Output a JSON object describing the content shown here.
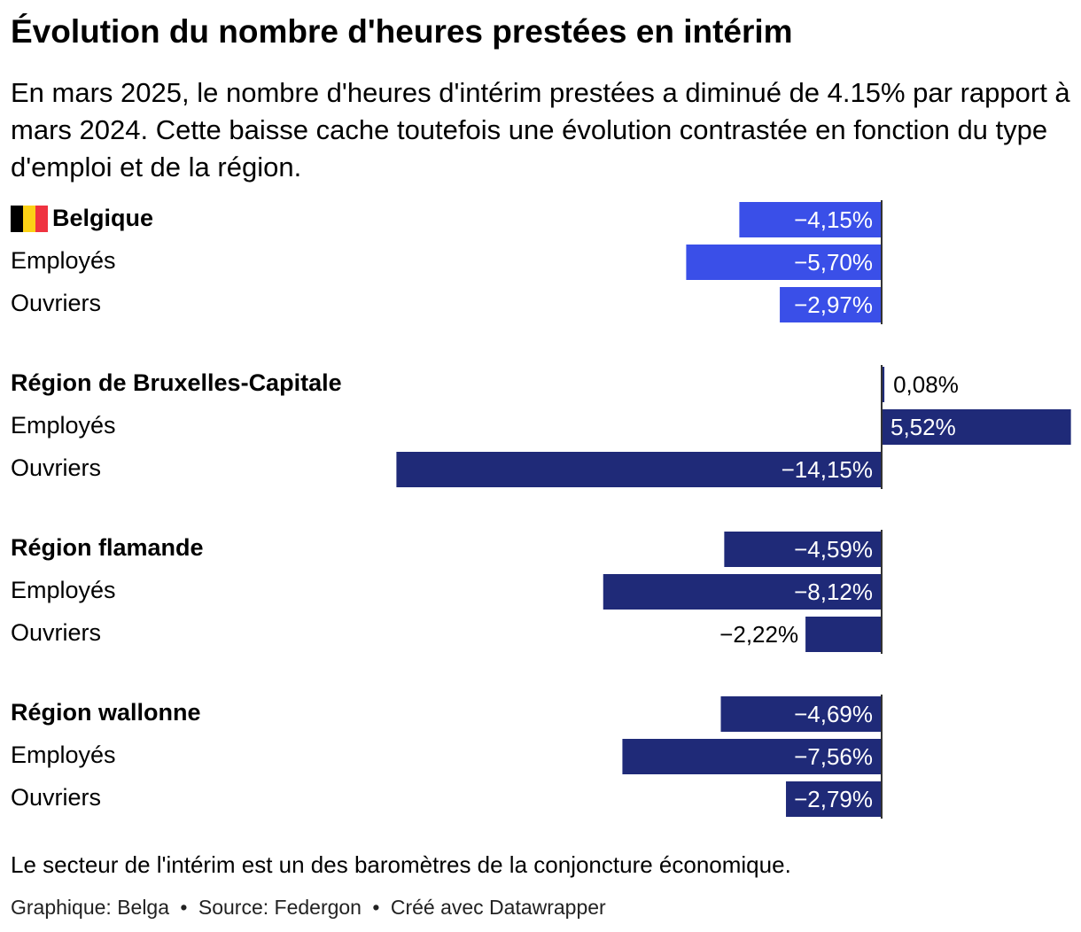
{
  "title": "Évolution du nombre d'heures prestées en intérim",
  "subtitle": "En mars 2025, le nombre d'heures d'intérim prestées a diminué de 4.15% par rapport à mars 2024. Cette baisse cache toutefois une évolution contrastée en fonction du type d'emploi et de la région.",
  "notes": "Le secteur de l'intérim est un des baromètres de la conjoncture économique.",
  "byline": {
    "graphic": "Graphique: Belga",
    "separator": "•",
    "source": "Source: Federgon",
    "credit": "Créé avec Datawrapper"
  },
  "colors": {
    "belgium_bar": "#3a4fe8",
    "region_bar": "#1f2a78",
    "flag_black": "#000000",
    "flag_yellow": "#fbd116",
    "flag_red": "#ef3340"
  },
  "chart_data": {
    "type": "bar",
    "orientation": "horizontal",
    "unit": "%",
    "xlim": [
      -14.15,
      5.52
    ],
    "groups": [
      {
        "name": "Belgique",
        "flag": "belgian-flag-icon",
        "color_key": "belgium_bar",
        "rows": [
          {
            "label": "Belgique",
            "value": -4.15,
            "display": "−4,15%",
            "header": true
          },
          {
            "label": "Employés",
            "value": -5.7,
            "display": "−5,70%",
            "header": false
          },
          {
            "label": "Ouvriers",
            "value": -2.97,
            "display": "−2,97%",
            "header": false
          }
        ]
      },
      {
        "name": "Région de Bruxelles-Capitale",
        "color_key": "region_bar",
        "rows": [
          {
            "label": "Région de Bruxelles-Capitale",
            "value": 0.08,
            "display": "0,08%",
            "header": true
          },
          {
            "label": "Employés",
            "value": 5.52,
            "display": "5,52%",
            "header": false
          },
          {
            "label": "Ouvriers",
            "value": -14.15,
            "display": "−14,15%",
            "header": false
          }
        ]
      },
      {
        "name": "Région flamande",
        "color_key": "region_bar",
        "rows": [
          {
            "label": "Région flamande",
            "value": -4.59,
            "display": "−4,59%",
            "header": true
          },
          {
            "label": "Employés",
            "value": -8.12,
            "display": "−8,12%",
            "header": false
          },
          {
            "label": "Ouvriers",
            "value": -2.22,
            "display": "−2,22%",
            "header": false
          }
        ]
      },
      {
        "name": "Région wallonne",
        "color_key": "region_bar",
        "rows": [
          {
            "label": "Région wallonne",
            "value": -4.69,
            "display": "−4,69%",
            "header": true
          },
          {
            "label": "Employés",
            "value": -7.56,
            "display": "−7,56%",
            "header": false
          },
          {
            "label": "Ouvriers",
            "value": -2.79,
            "display": "−2,79%",
            "header": false
          }
        ]
      }
    ]
  }
}
